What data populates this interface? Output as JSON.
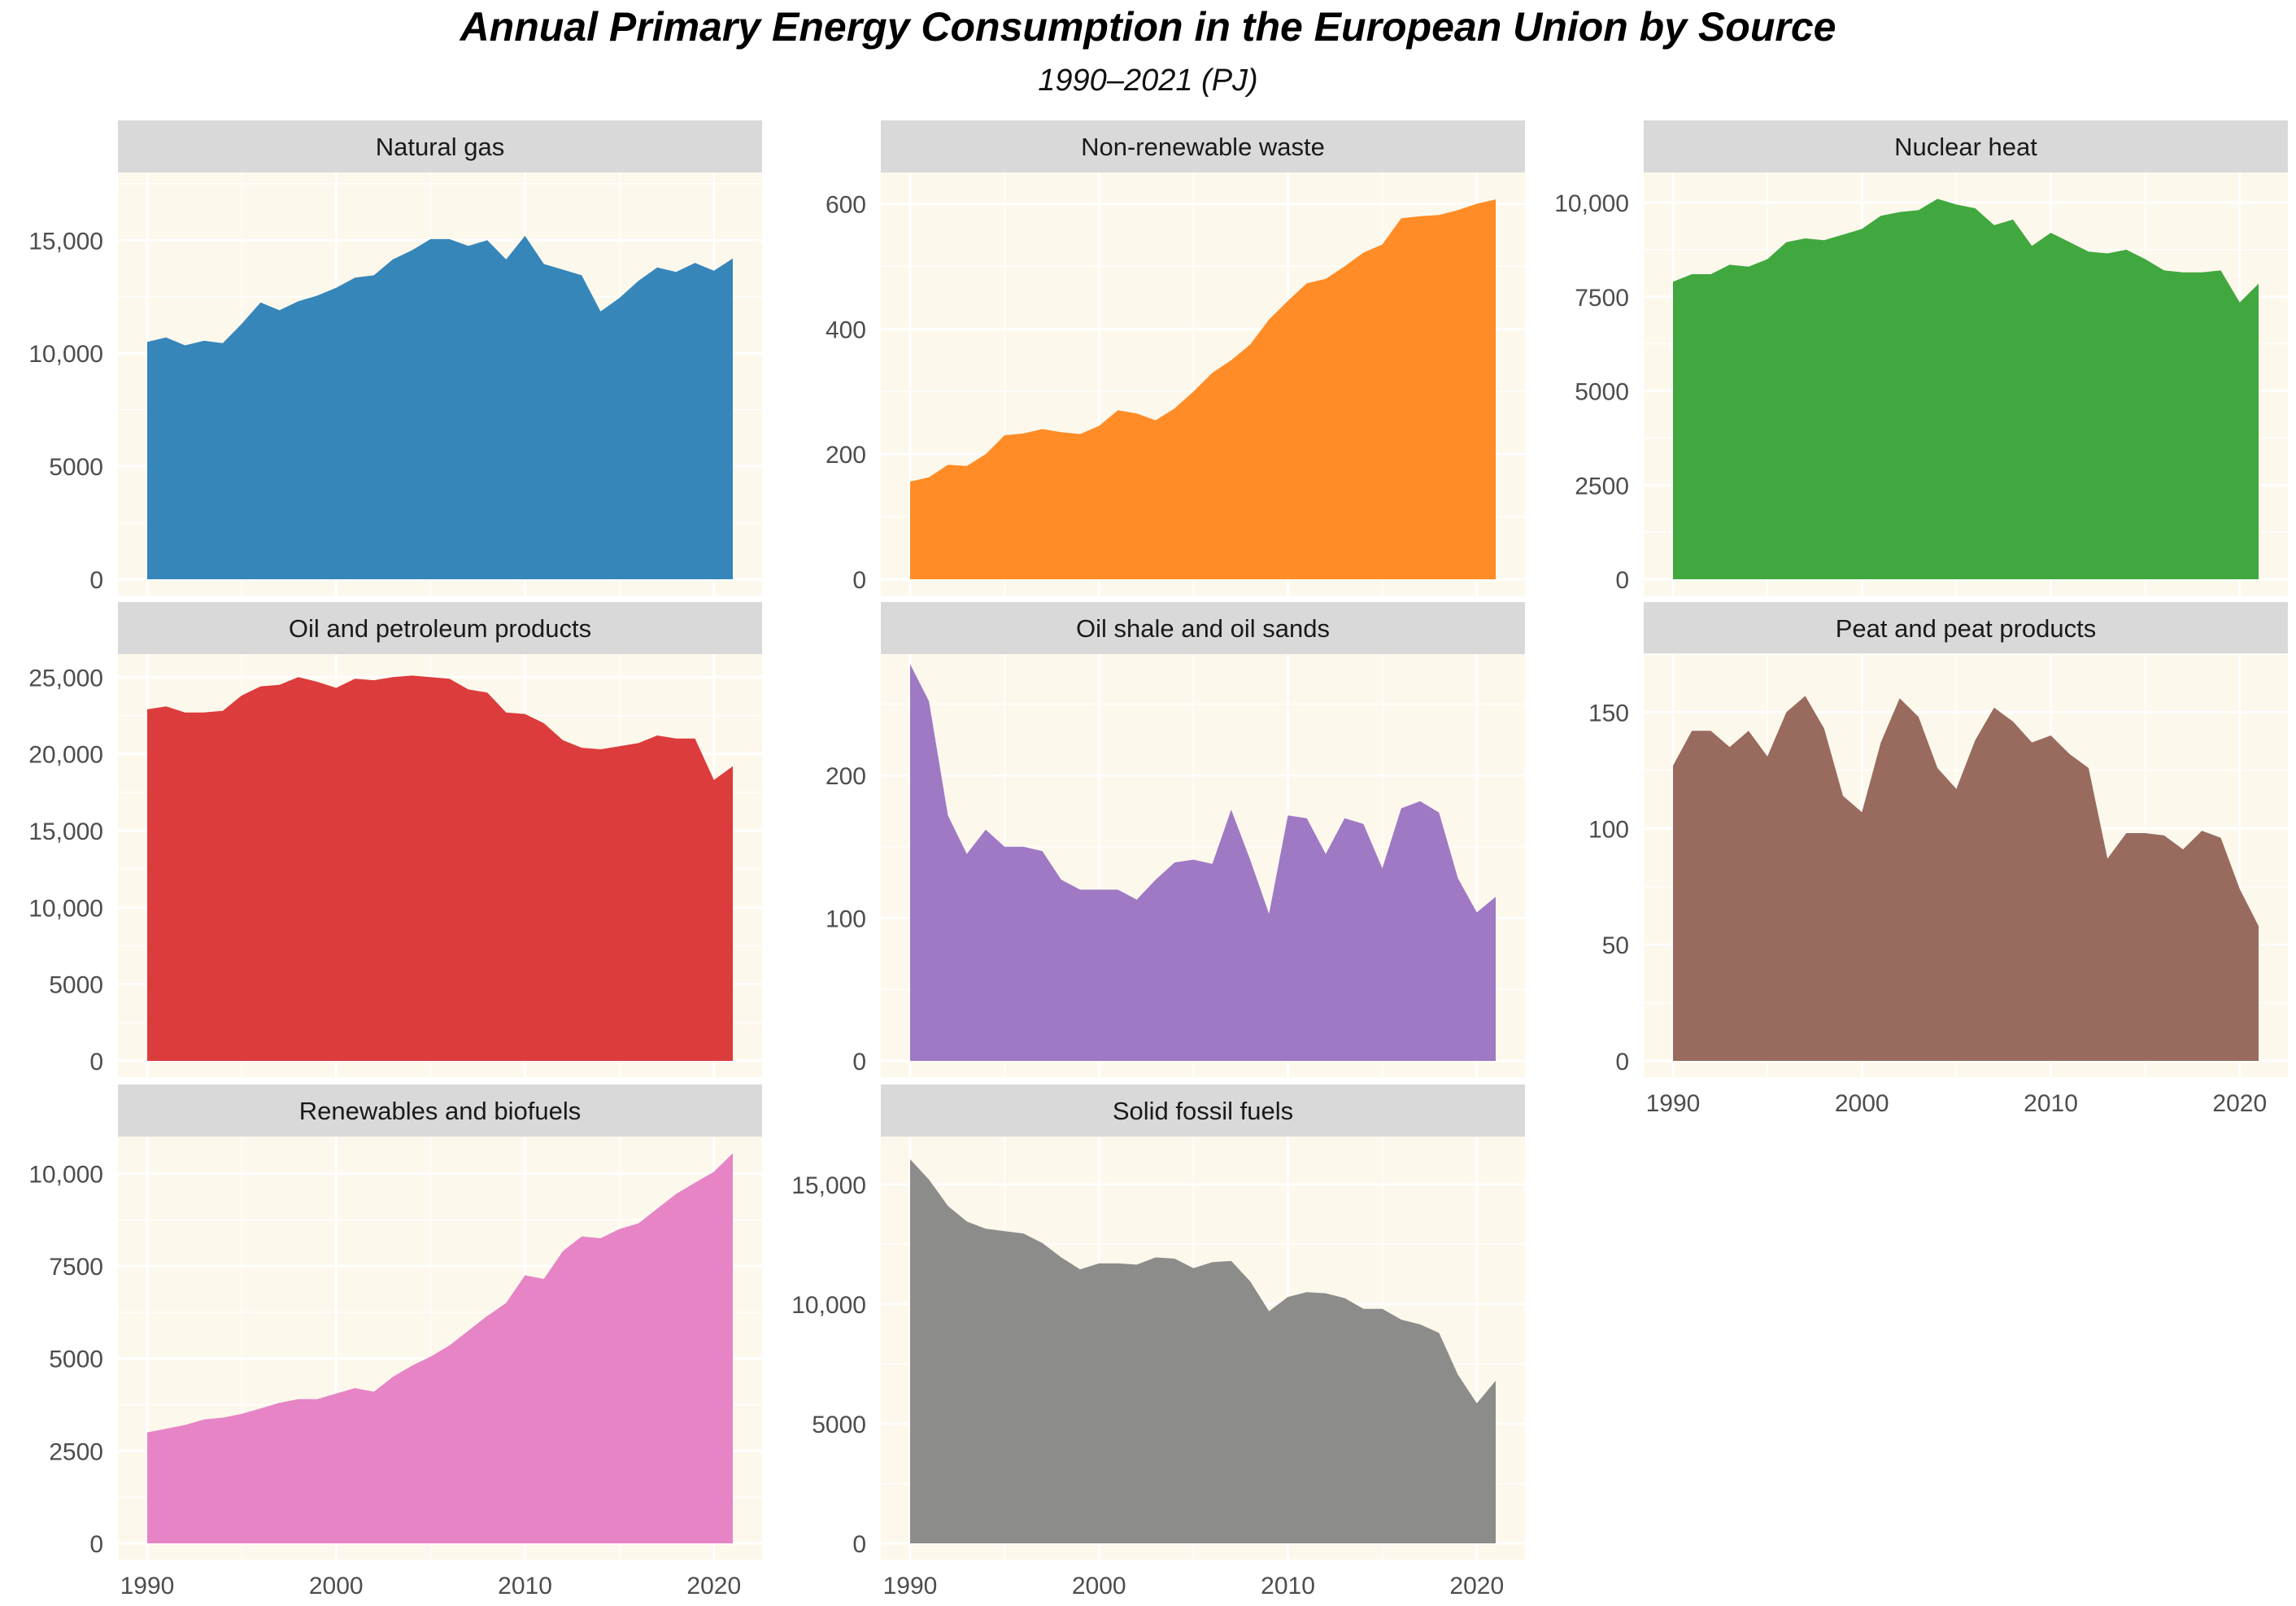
{
  "chart_data": {
    "type": "area",
    "title": "Annual Primary Energy Consumption in the European Union by Source",
    "subtitle": "1990–2021 (PJ)",
    "xlabel": "",
    "ylabel": "",
    "x": [
      1990,
      1991,
      1992,
      1993,
      1994,
      1995,
      1996,
      1997,
      1998,
      1999,
      2000,
      2001,
      2002,
      2003,
      2004,
      2005,
      2006,
      2007,
      2008,
      2009,
      2010,
      2011,
      2012,
      2013,
      2014,
      2015,
      2016,
      2017,
      2018,
      2019,
      2020,
      2021
    ],
    "xticks": [
      1990,
      2000,
      2010,
      2020
    ],
    "xtick_labels": [
      "1990",
      "2000",
      "2010",
      "2020"
    ],
    "panels": [
      {
        "name": "Natural gas",
        "color": "#3686BA",
        "ylim": [
          0,
          18000
        ],
        "yticks": [
          0,
          5000,
          10000,
          15000
        ],
        "ytick_labels": [
          "0",
          "5000",
          "10,000",
          "15,000"
        ],
        "values": [
          10500,
          10700,
          10350,
          10550,
          10450,
          11300,
          12250,
          11900,
          12300,
          12550,
          12900,
          13350,
          13450,
          14150,
          14550,
          15050,
          15050,
          14750,
          15000,
          14150,
          15200,
          13950,
          13700,
          13450,
          11850,
          12450,
          13200,
          13800,
          13600,
          14000,
          13650,
          14200
        ]
      },
      {
        "name": "Non-renewable waste",
        "color": "#FF8C26",
        "ylim": [
          0,
          650
        ],
        "yticks": [
          0,
          200,
          400,
          600
        ],
        "ytick_labels": [
          "0",
          "200",
          "400",
          "600"
        ],
        "values": [
          156,
          163,
          183,
          181,
          200,
          230,
          233,
          240,
          235,
          232,
          245,
          270,
          265,
          254,
          273,
          300,
          330,
          350,
          375,
          415,
          445,
          473,
          480,
          500,
          522,
          535,
          577,
          580,
          582,
          590,
          600,
          607
        ]
      },
      {
        "name": "Nuclear heat",
        "color": "#41A83F",
        "ylim": [
          0,
          10800
        ],
        "yticks": [
          0,
          2500,
          5000,
          7500,
          10000
        ],
        "ytick_labels": [
          "0",
          "2500",
          "5000",
          "7500",
          "10,000"
        ],
        "values": [
          7900,
          8100,
          8100,
          8350,
          8300,
          8500,
          8950,
          9050,
          9000,
          9150,
          9300,
          9650,
          9750,
          9800,
          10100,
          9950,
          9850,
          9400,
          9550,
          8850,
          9200,
          8950,
          8700,
          8650,
          8750,
          8500,
          8200,
          8150,
          8150,
          8200,
          7350,
          7850
        ]
      },
      {
        "name": "Oil and petroleum products",
        "color": "#DC3C3C",
        "ylim": [
          0,
          26500
        ],
        "yticks": [
          0,
          5000,
          10000,
          15000,
          20000,
          25000
        ],
        "ytick_labels": [
          "0",
          "5000",
          "10,000",
          "15,000",
          "20,000",
          "25,000"
        ],
        "values": [
          22900,
          23100,
          22700,
          22700,
          22800,
          23800,
          24400,
          24500,
          25000,
          24700,
          24300,
          24900,
          24800,
          25000,
          25100,
          25000,
          24900,
          24200,
          24000,
          22700,
          22600,
          22000,
          20900,
          20400,
          20300,
          20500,
          20700,
          21200,
          21000,
          21000,
          18300,
          19200
        ]
      },
      {
        "name": "Oil shale and oil sands",
        "color": "#9F79C4",
        "ylim": [
          0,
          285
        ],
        "yticks": [
          0,
          100,
          200
        ],
        "ytick_labels": [
          "0",
          "100",
          "200"
        ],
        "values": [
          278,
          252,
          172,
          145,
          162,
          150,
          150,
          147,
          127,
          120,
          120,
          120,
          113,
          127,
          139,
          141,
          138,
          176,
          141,
          103,
          172,
          170,
          145,
          170,
          166,
          135,
          177,
          182,
          174,
          128,
          104,
          115
        ]
      },
      {
        "name": "Peat and peat products",
        "color": "#986B5E",
        "ylim": [
          0,
          175
        ],
        "yticks": [
          0,
          50,
          100,
          150
        ],
        "ytick_labels": [
          "0",
          "50",
          "100",
          "150"
        ],
        "values": [
          127,
          142,
          142,
          135,
          142,
          131,
          150,
          157,
          143,
          114,
          107,
          137,
          156,
          148,
          126,
          117,
          138,
          152,
          146,
          137,
          140,
          132,
          126,
          87,
          98,
          98,
          97,
          91,
          99,
          96,
          74,
          58
        ]
      },
      {
        "name": "Renewables and biofuels",
        "color": "#E684C6",
        "ylim": [
          0,
          11000
        ],
        "yticks": [
          0,
          2500,
          5000,
          7500,
          10000
        ],
        "ytick_labels": [
          "0",
          "2500",
          "5000",
          "7500",
          "10,000"
        ],
        "values": [
          3000,
          3100,
          3200,
          3350,
          3400,
          3500,
          3650,
          3800,
          3900,
          3900,
          4050,
          4200,
          4100,
          4500,
          4800,
          5050,
          5350,
          5750,
          6150,
          6500,
          7250,
          7150,
          7900,
          8300,
          8250,
          8500,
          8650,
          9050,
          9450,
          9750,
          10050,
          10550
        ]
      },
      {
        "name": "Solid fossil fuels",
        "color": "#8C8C8A",
        "ylim": [
          0,
          17000
        ],
        "yticks": [
          0,
          5000,
          10000,
          15000
        ],
        "ytick_labels": [
          "0",
          "5000",
          "10,000",
          "15,000"
        ],
        "values": [
          16050,
          15200,
          14100,
          13450,
          13150,
          13050,
          12950,
          12550,
          11950,
          11450,
          11700,
          11700,
          11650,
          11950,
          11900,
          11500,
          11750,
          11800,
          10950,
          9700,
          10300,
          10500,
          10450,
          10250,
          9800,
          9800,
          9350,
          9150,
          8800,
          7050,
          5850,
          6800
        ]
      }
    ]
  }
}
